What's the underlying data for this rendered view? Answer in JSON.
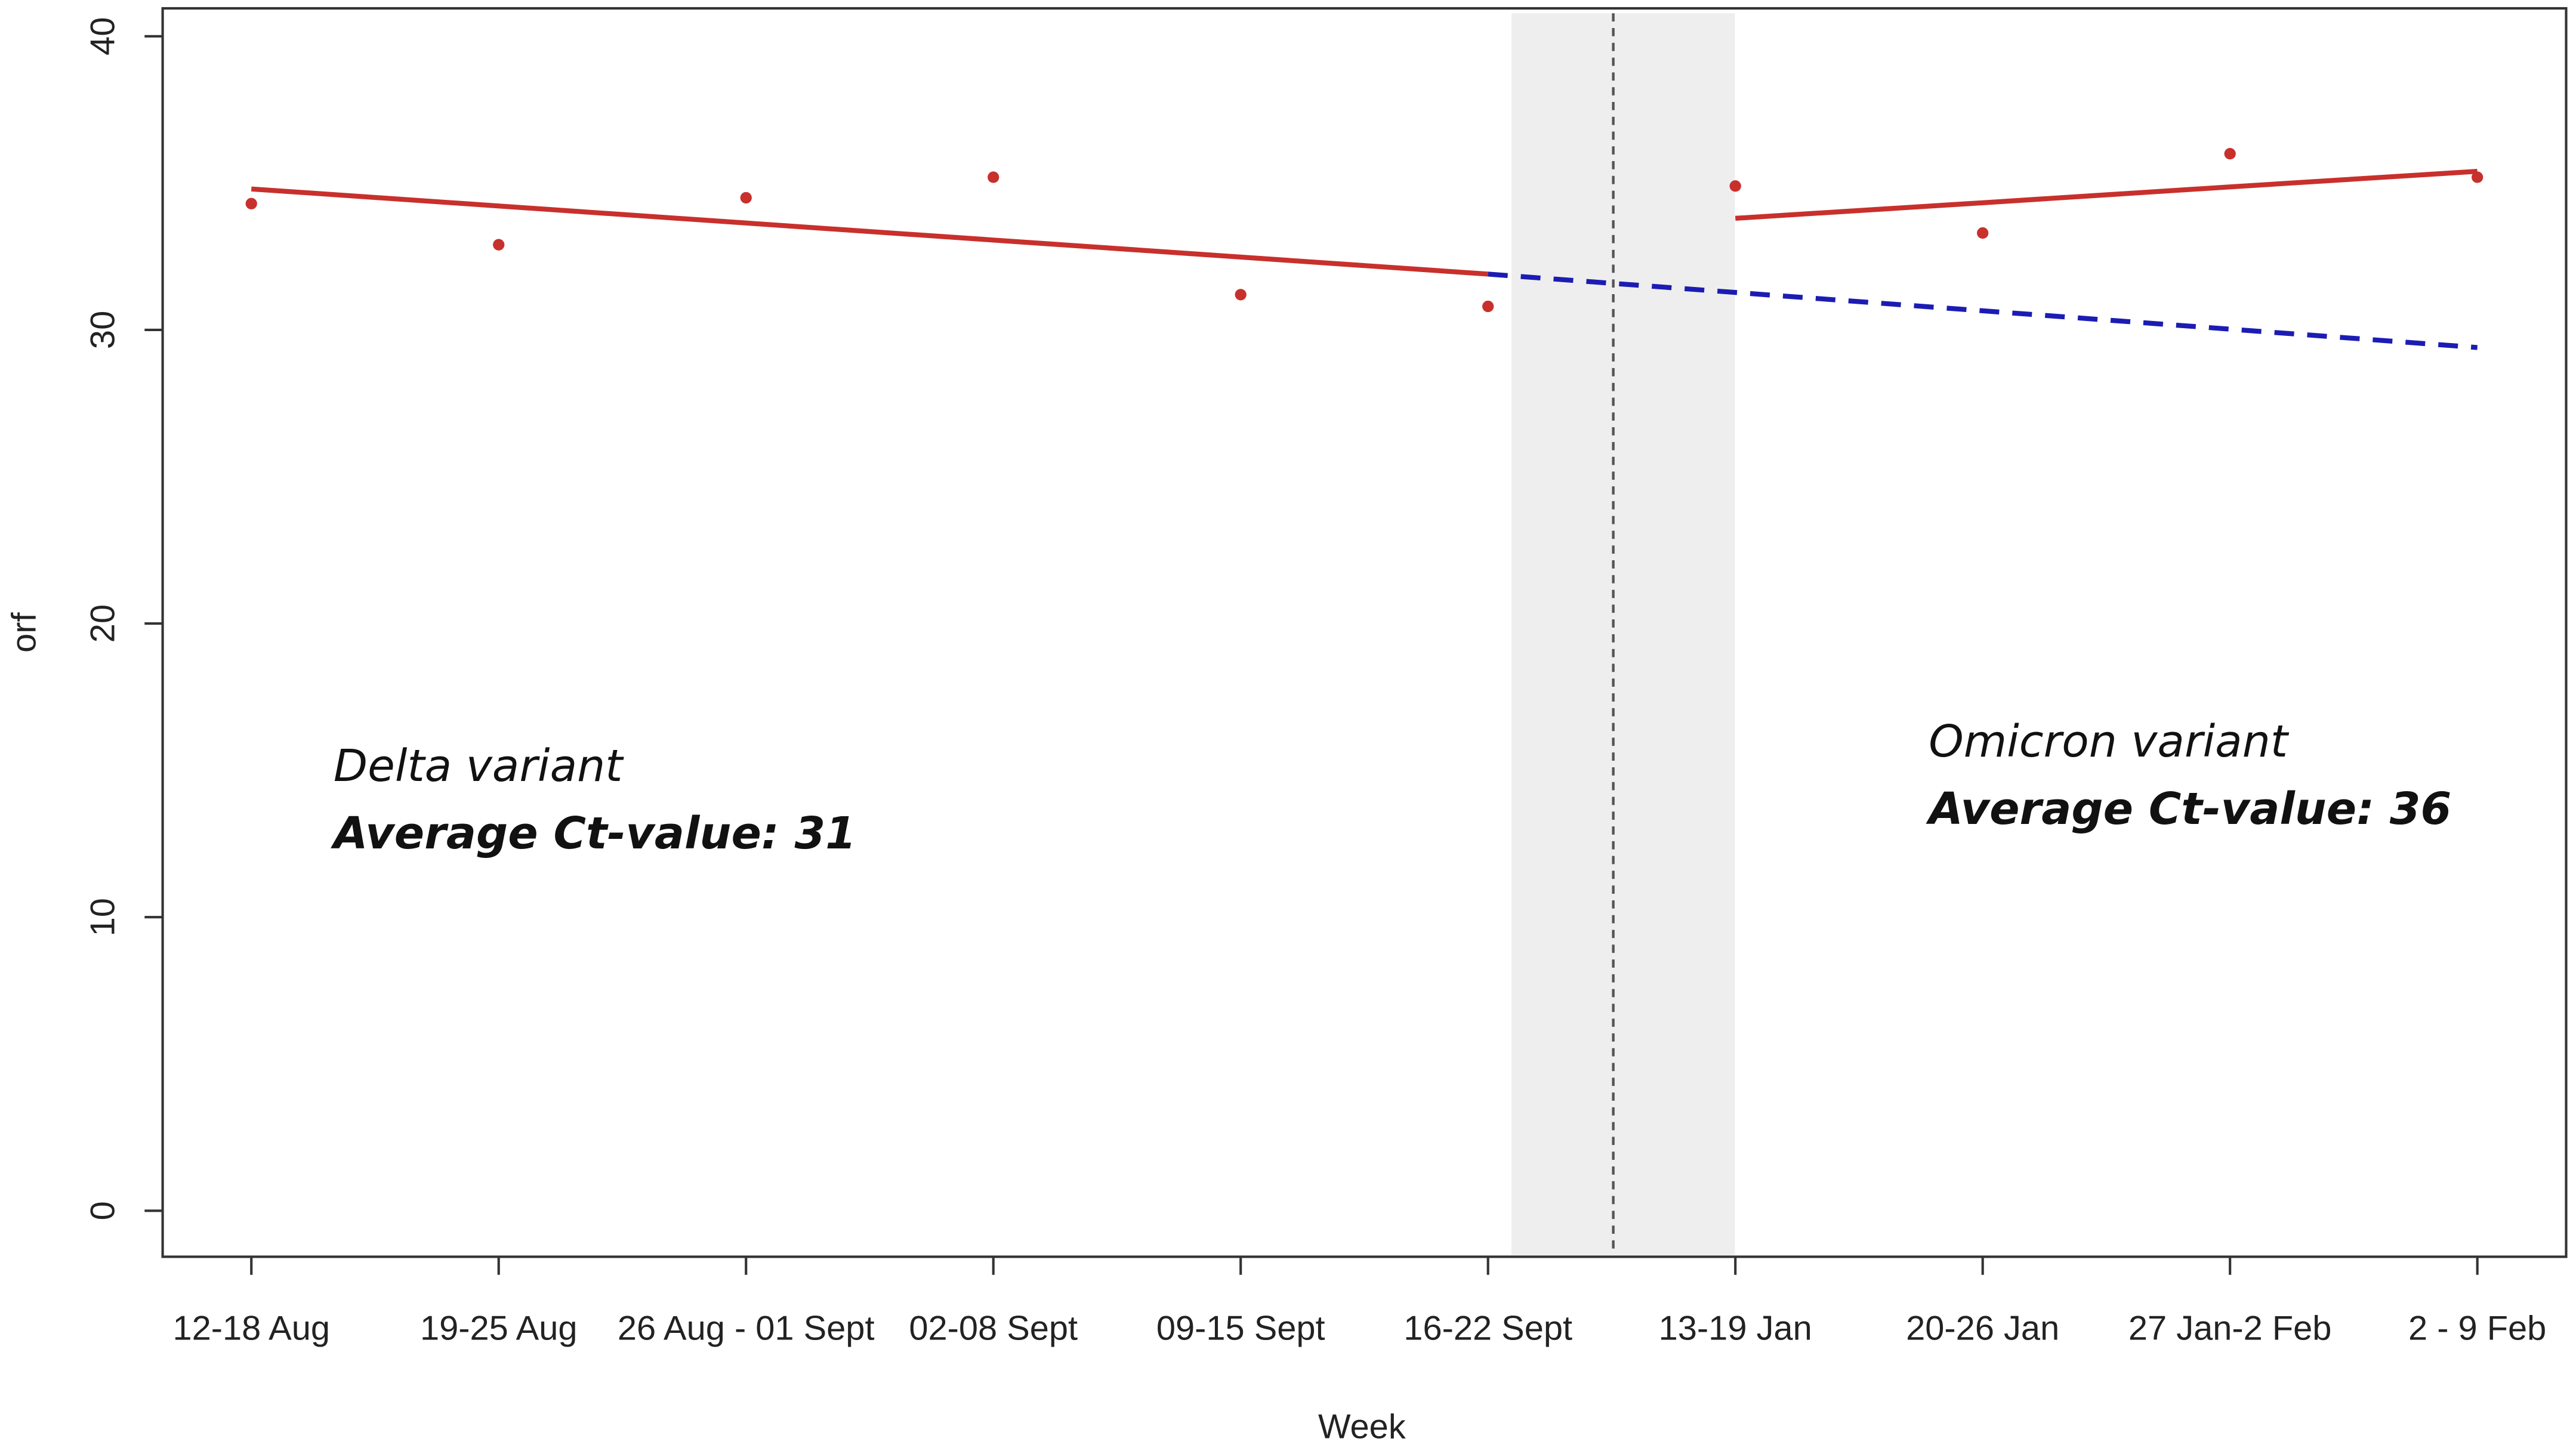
{
  "chart_data": {
    "type": "line",
    "categories": [
      "12-18 Aug",
      "19-25 Aug",
      "26 Aug - 01 Sept",
      "02-08 Sept",
      "09-15 Sept",
      "16-22 Sept",
      "13-19 Jan",
      "20-26 Jan",
      "27 Jan-2 Feb",
      "2 - 9 Feb"
    ],
    "x_label": "Week",
    "y_label": "orf",
    "ylim": [
      0,
      40
    ],
    "yticks": [
      0,
      10,
      20,
      30,
      40
    ],
    "series": [
      {
        "style": "points",
        "color": "#c8302c",
        "values": [
          34.3,
          32.9,
          34.5,
          35.2,
          31.2,
          30.8,
          34.9,
          33.3,
          36.0,
          35.2
        ]
      },
      {
        "style": "solid",
        "color": "#c8302c",
        "values": [
          34.8,
          34.22,
          33.64,
          33.06,
          32.48,
          31.9,
          null,
          null,
          null,
          null
        ]
      },
      {
        "style": "solid",
        "color": "#c8302c",
        "values": [
          null,
          null,
          null,
          null,
          null,
          null,
          33.8,
          34.33,
          34.87,
          35.4
        ]
      },
      {
        "style": "dashed",
        "color": "#1c1cb4",
        "values": [
          null,
          null,
          null,
          null,
          null,
          31.9,
          31.275,
          30.65,
          30.025,
          29.4
        ]
      }
    ],
    "annotations": [
      {
        "text": "Delta variant",
        "bold": false
      },
      {
        "text": "Average  Ct-value:  31",
        "bold": true
      },
      {
        "text": "Omicron variant",
        "bold": false
      },
      {
        "text": "Average  Ct-value:  36",
        "bold": true
      }
    ]
  }
}
